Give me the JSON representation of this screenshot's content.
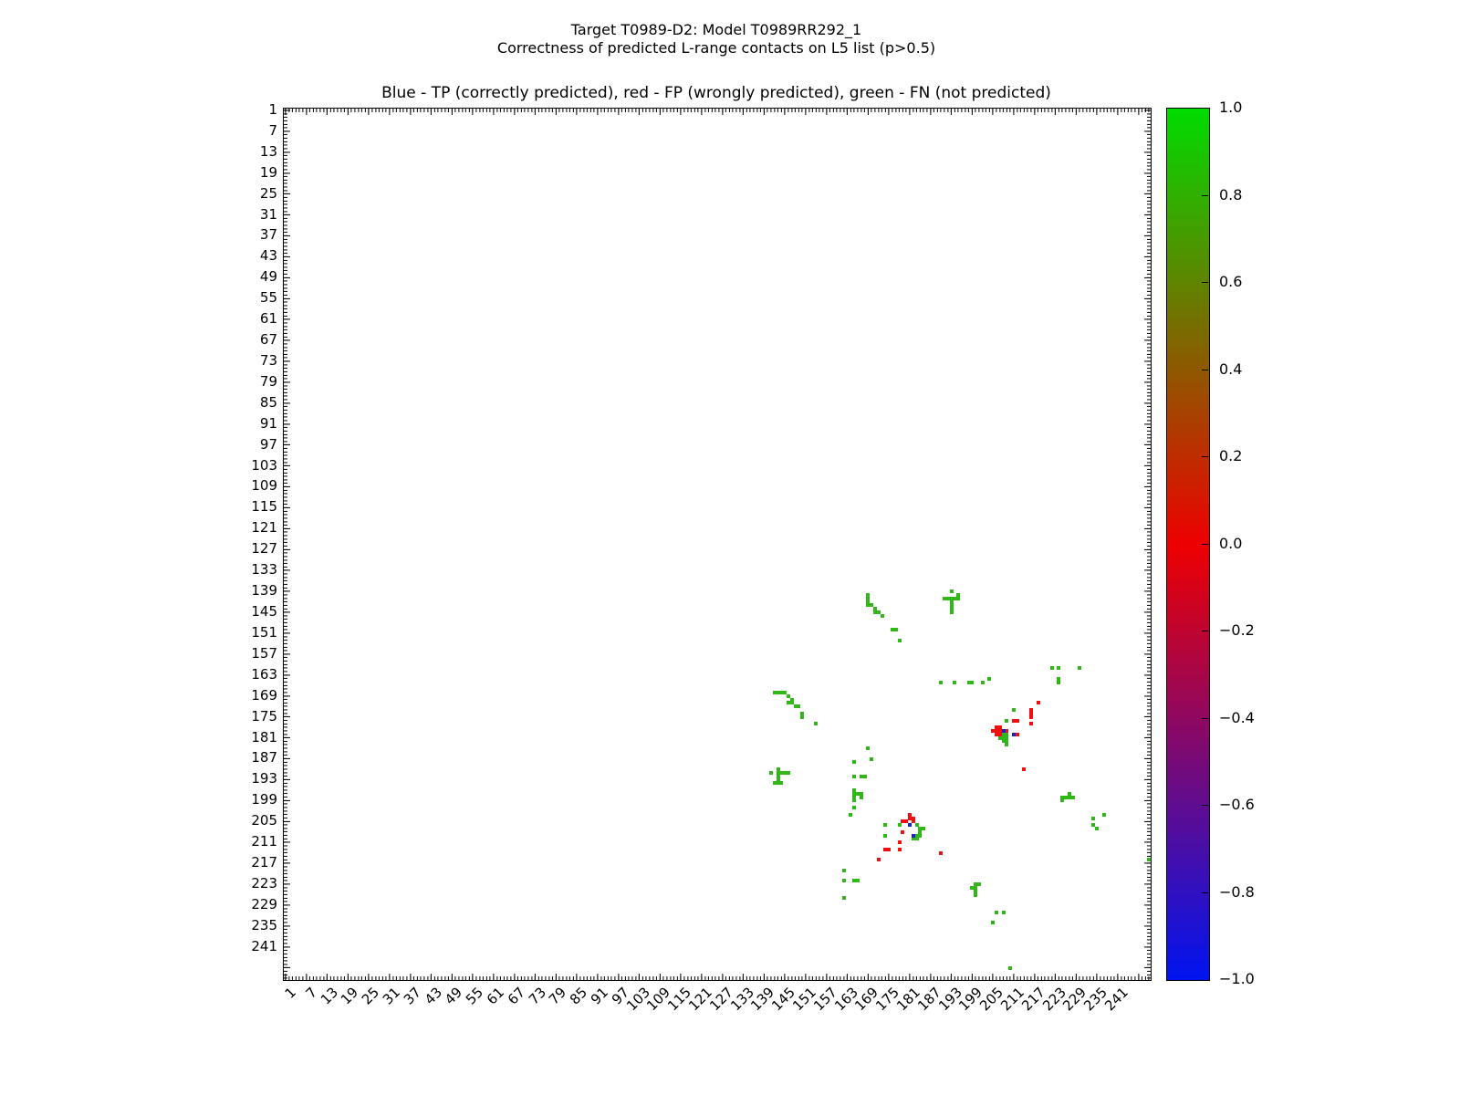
{
  "suptitle": {
    "line1": "Target T0989-D2: Model T0989RR292_1",
    "line2": "Correctness of predicted L-range contacts on L5 list (p>0.5)"
  },
  "axes_title": "Blue - TP (correctly predicted), red - FP (wrongly predicted), green - FN (not predicted)",
  "colors": {
    "tp_blue": "#2020c8",
    "fp_red": "#f01010",
    "fn_green": "#30b718",
    "colorbar_top": "#00dc00",
    "colorbar_mid": "#ee0000",
    "colorbar_bottom": "#0014f0",
    "axis": "#000000",
    "background": "#ffffff"
  },
  "chart_data": {
    "type": "heatmap",
    "title": "Blue - TP (correctly predicted), red - FP (wrongly predicted), green - FN (not predicted)",
    "x_range": [
      1,
      250
    ],
    "y_range": [
      1,
      250
    ],
    "x_tick_labels": [
      1,
      7,
      13,
      19,
      25,
      31,
      37,
      43,
      49,
      55,
      61,
      67,
      73,
      79,
      85,
      91,
      97,
      103,
      109,
      115,
      121,
      127,
      133,
      139,
      145,
      151,
      157,
      163,
      169,
      175,
      181,
      187,
      193,
      199,
      205,
      211,
      217,
      223,
      229,
      235,
      241
    ],
    "y_tick_labels": [
      1,
      7,
      13,
      19,
      25,
      31,
      37,
      43,
      49,
      55,
      61,
      67,
      73,
      79,
      85,
      91,
      97,
      103,
      109,
      115,
      121,
      127,
      133,
      139,
      145,
      151,
      157,
      163,
      169,
      175,
      181,
      187,
      193,
      199,
      205,
      211,
      217,
      223,
      229,
      235,
      241
    ],
    "colorbar_tick_labels": [
      "1.0",
      "0.8",
      "0.6",
      "0.4",
      "0.2",
      "0.0",
      "−0.2",
      "−0.4",
      "−0.6",
      "−0.8",
      "−1.0"
    ],
    "colorbar_range": [
      -1.0,
      1.0
    ],
    "legend": {
      "TP": "blue, correctly predicted",
      "FP": "red, wrongly predicted",
      "FN": "green, not predicted"
    },
    "cells": {
      "FN": [
        [
          169,
          140
        ],
        [
          169,
          141
        ],
        [
          169,
          142
        ],
        [
          169,
          143
        ],
        [
          170,
          143
        ],
        [
          171,
          144
        ],
        [
          171,
          145
        ],
        [
          172,
          145
        ],
        [
          173,
          146
        ],
        [
          176,
          150
        ],
        [
          177,
          150
        ],
        [
          178,
          153
        ],
        [
          193,
          139
        ],
        [
          195,
          140
        ],
        [
          191,
          141
        ],
        [
          192,
          141
        ],
        [
          193,
          141
        ],
        [
          194,
          141
        ],
        [
          195,
          141
        ],
        [
          193,
          142
        ],
        [
          193,
          143
        ],
        [
          193,
          144
        ],
        [
          193,
          145
        ],
        [
          190,
          165
        ],
        [
          194,
          165
        ],
        [
          198,
          165
        ],
        [
          199,
          165
        ],
        [
          202,
          165
        ],
        [
          204,
          164
        ],
        [
          222,
          161
        ],
        [
          224,
          161
        ],
        [
          230,
          161
        ],
        [
          224,
          164
        ],
        [
          224,
          165
        ],
        [
          142,
          168
        ],
        [
          143,
          168
        ],
        [
          144,
          168
        ],
        [
          145,
          168
        ],
        [
          146,
          169
        ],
        [
          147,
          170
        ],
        [
          146,
          171
        ],
        [
          147,
          171
        ],
        [
          148,
          172
        ],
        [
          149,
          172
        ],
        [
          150,
          174
        ],
        [
          150,
          175
        ],
        [
          154,
          177
        ],
        [
          143,
          190
        ],
        [
          141,
          191
        ],
        [
          143,
          191
        ],
        [
          144,
          191
        ],
        [
          145,
          191
        ],
        [
          146,
          191
        ],
        [
          143,
          192
        ],
        [
          143,
          193
        ],
        [
          142,
          194
        ],
        [
          143,
          194
        ],
        [
          144,
          194
        ],
        [
          165,
          188
        ],
        [
          165,
          192
        ],
        [
          167,
          192
        ],
        [
          168,
          192
        ],
        [
          165,
          196
        ],
        [
          165,
          197
        ],
        [
          166,
          197
        ],
        [
          167,
          197
        ],
        [
          167,
          198
        ],
        [
          165,
          198
        ],
        [
          165,
          199
        ],
        [
          165,
          201
        ],
        [
          164,
          203
        ],
        [
          169,
          184
        ],
        [
          170,
          187
        ],
        [
          174,
          206
        ],
        [
          178,
          206
        ],
        [
          183,
          206
        ],
        [
          184,
          207
        ],
        [
          185,
          207
        ],
        [
          184,
          208
        ],
        [
          174,
          209
        ],
        [
          183,
          209
        ],
        [
          184,
          209
        ],
        [
          182,
          210
        ],
        [
          183,
          210
        ],
        [
          211,
          173
        ],
        [
          209,
          176
        ],
        [
          208,
          180
        ],
        [
          209,
          180
        ],
        [
          207,
          181
        ],
        [
          208,
          181
        ],
        [
          209,
          181
        ],
        [
          208,
          182
        ],
        [
          209,
          182
        ],
        [
          209,
          183
        ],
        [
          227,
          197
        ],
        [
          225,
          198
        ],
        [
          226,
          198
        ],
        [
          227,
          198
        ],
        [
          228,
          198
        ],
        [
          225,
          199
        ],
        [
          237,
          203
        ],
        [
          234,
          204
        ],
        [
          234,
          206
        ],
        [
          235,
          207
        ],
        [
          200,
          223
        ],
        [
          201,
          223
        ],
        [
          199,
          224
        ],
        [
          200,
          224
        ],
        [
          200,
          225
        ],
        [
          200,
          226
        ],
        [
          206,
          231
        ],
        [
          208,
          231
        ],
        [
          205,
          234
        ],
        [
          162,
          219
        ],
        [
          162,
          222
        ],
        [
          165,
          222
        ],
        [
          166,
          222
        ],
        [
          162,
          227
        ],
        [
          250,
          216
        ],
        [
          210,
          247
        ]
      ],
      "FP": [
        [
          181,
          203
        ],
        [
          181,
          204
        ],
        [
          182,
          204
        ],
        [
          179,
          205
        ],
        [
          180,
          205
        ],
        [
          182,
          205
        ],
        [
          179,
          208
        ],
        [
          178,
          211
        ],
        [
          174,
          213
        ],
        [
          175,
          213
        ],
        [
          178,
          213
        ],
        [
          172,
          216
        ],
        [
          218,
          171
        ],
        [
          216,
          173
        ],
        [
          216,
          174
        ],
        [
          216,
          175
        ],
        [
          211,
          176
        ],
        [
          212,
          176
        ],
        [
          216,
          177
        ],
        [
          206,
          178
        ],
        [
          207,
          178
        ],
        [
          205,
          179
        ],
        [
          206,
          179
        ],
        [
          207,
          179
        ],
        [
          209,
          179
        ],
        [
          206,
          180
        ],
        [
          207,
          180
        ],
        [
          212,
          180
        ],
        [
          214,
          190
        ],
        [
          190,
          214
        ]
      ],
      "TP": [
        [
          208,
          179
        ],
        [
          211,
          180
        ],
        [
          181,
          206
        ],
        [
          182,
          209
        ]
      ]
    }
  }
}
